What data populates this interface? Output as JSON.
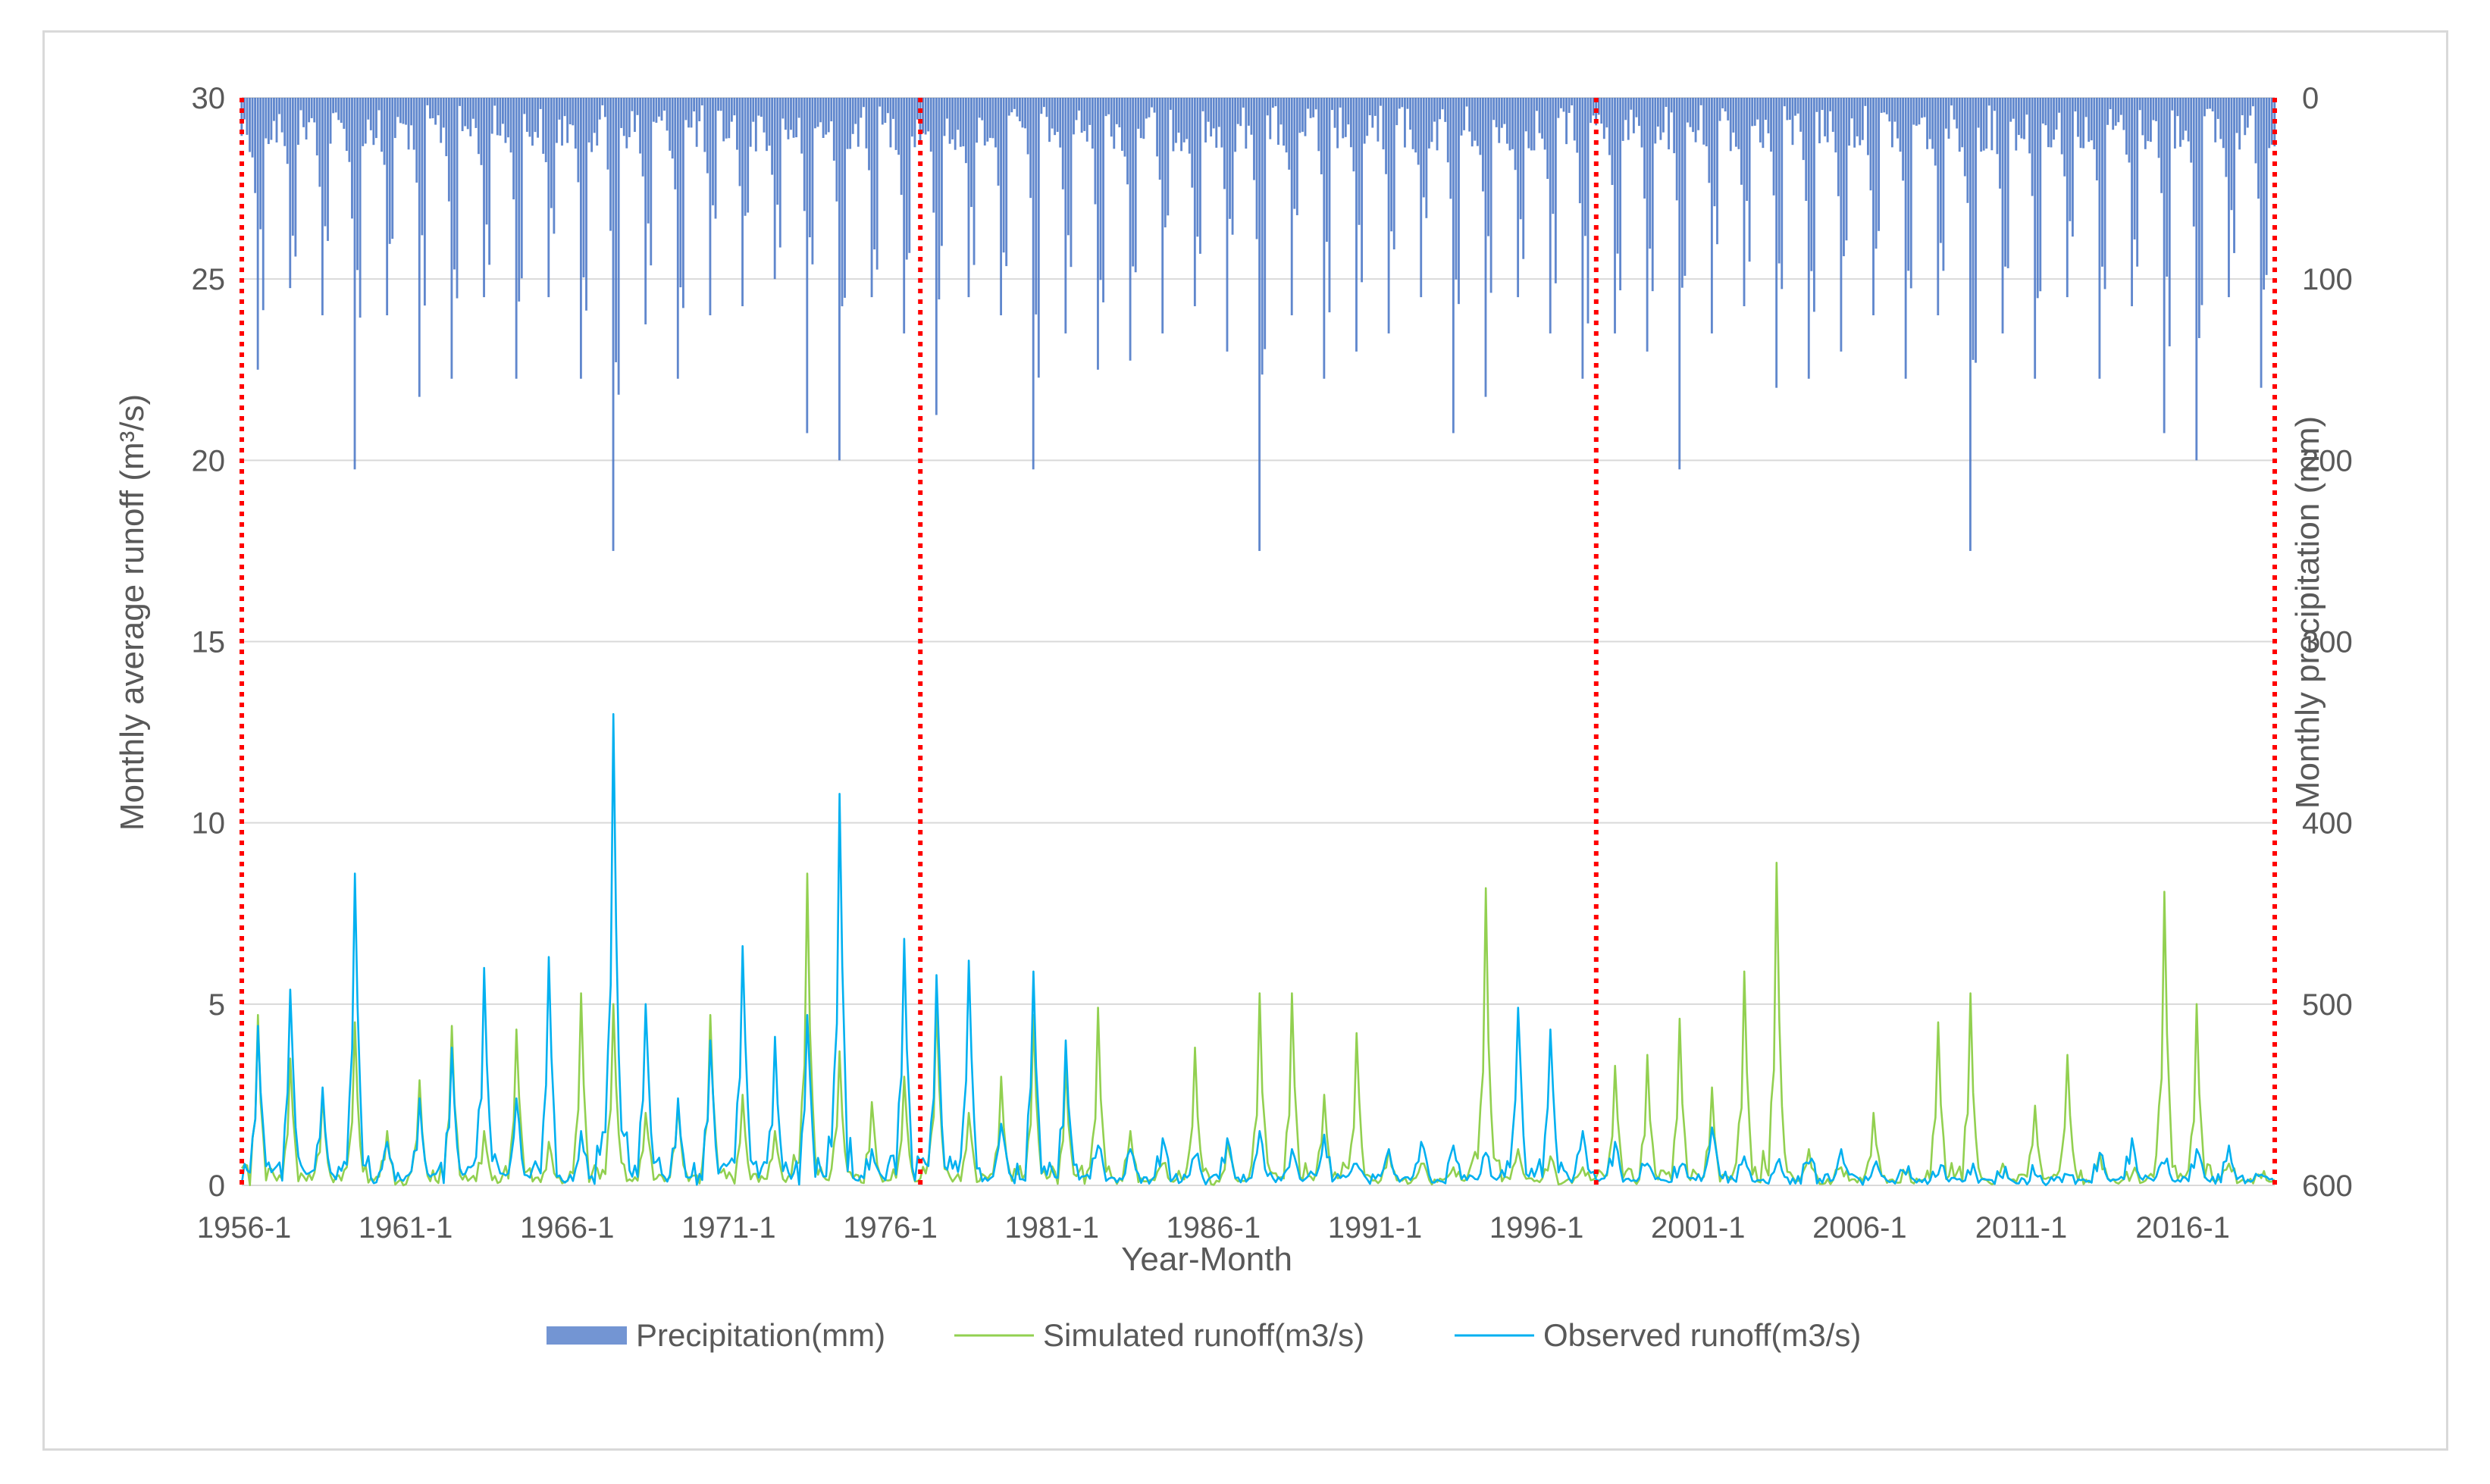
{
  "chart_data": {
    "type": "line",
    "xlabel": "Year-Month",
    "ylabel_left": "Monthly average runoff (m³/s)",
    "ylabel_right": "Monthly precipitation (mm)",
    "y_left_lim": [
      0,
      30
    ],
    "y_left_ticks": [
      "0",
      "5",
      "10",
      "15",
      "20",
      "25",
      "30"
    ],
    "y_right_lim": [
      600,
      0
    ],
    "y_right_inverted": true,
    "y_right_ticks": [
      "0",
      "100",
      "200",
      "300",
      "400",
      "500",
      "600"
    ],
    "x_range": [
      "1956-1",
      "2018-12"
    ],
    "x_ticks": [
      "1956-1",
      "1961-1",
      "1966-1",
      "1971-1",
      "1976-1",
      "1981-1",
      "1986-1",
      "1991-1",
      "1996-1",
      "2001-1",
      "2006-1",
      "2011-1",
      "2016-1"
    ],
    "grid": "horizontal",
    "legend_position": "bottom",
    "period_dividers": [
      "1956-1",
      "1977-1",
      "1997-12",
      "2018-12"
    ],
    "colors": {
      "precipitation": "#4472c4",
      "simulated": "#92d050",
      "observed": "#00b0f0",
      "divider": "#ff0000",
      "grid": "#d9d9d9",
      "text": "#595959"
    },
    "series": [
      {
        "name": "Precipitation(mm)",
        "kind": "bar",
        "axis": "right",
        "values": [
          {
            "x": "1956-7",
            "y": 150
          },
          {
            "x": "1957-7",
            "y": 105
          },
          {
            "x": "1958-7",
            "y": 120
          },
          {
            "x": "1959-7",
            "y": 205
          },
          {
            "x": "1960-7",
            "y": 120
          },
          {
            "x": "1961-7",
            "y": 165
          },
          {
            "x": "1962-7",
            "y": 155
          },
          {
            "x": "1963-7",
            "y": 110
          },
          {
            "x": "1964-7",
            "y": 155
          },
          {
            "x": "1965-7",
            "y": 110
          },
          {
            "x": "1966-7",
            "y": 155
          },
          {
            "x": "1967-7",
            "y": 250
          },
          {
            "x": "1968-7",
            "y": 125
          },
          {
            "x": "1969-7",
            "y": 155
          },
          {
            "x": "1970-7",
            "y": 120
          },
          {
            "x": "1971-7",
            "y": 115
          },
          {
            "x": "1972-7",
            "y": 100
          },
          {
            "x": "1973-7",
            "y": 185
          },
          {
            "x": "1974-7",
            "y": 200
          },
          {
            "x": "1975-7",
            "y": 110
          },
          {
            "x": "1976-7",
            "y": 130
          },
          {
            "x": "1977-7",
            "y": 175
          },
          {
            "x": "1978-7",
            "y": 110
          },
          {
            "x": "1979-7",
            "y": 120
          },
          {
            "x": "1980-7",
            "y": 205
          },
          {
            "x": "1981-7",
            "y": 130
          },
          {
            "x": "1982-7",
            "y": 150
          },
          {
            "x": "1983-7",
            "y": 145
          },
          {
            "x": "1984-7",
            "y": 130
          },
          {
            "x": "1985-7",
            "y": 115
          },
          {
            "x": "1986-7",
            "y": 140
          },
          {
            "x": "1987-7",
            "y": 250
          },
          {
            "x": "1988-7",
            "y": 120
          },
          {
            "x": "1989-7",
            "y": 155
          },
          {
            "x": "1990-7",
            "y": 140
          },
          {
            "x": "1991-7",
            "y": 130
          },
          {
            "x": "1992-7",
            "y": 110
          },
          {
            "x": "1993-7",
            "y": 185
          },
          {
            "x": "1994-7",
            "y": 165
          },
          {
            "x": "1995-7",
            "y": 110
          },
          {
            "x": "1996-7",
            "y": 130
          },
          {
            "x": "1997-7",
            "y": 155
          },
          {
            "x": "1998-7",
            "y": 130
          },
          {
            "x": "1999-7",
            "y": 140
          },
          {
            "x": "2000-7",
            "y": 205
          },
          {
            "x": "2001-7",
            "y": 130
          },
          {
            "x": "2002-7",
            "y": 115
          },
          {
            "x": "2003-7",
            "y": 160
          },
          {
            "x": "2004-7",
            "y": 155
          },
          {
            "x": "2005-7",
            "y": 140
          },
          {
            "x": "2006-7",
            "y": 120
          },
          {
            "x": "2007-7",
            "y": 155
          },
          {
            "x": "2008-7",
            "y": 120
          },
          {
            "x": "2009-7",
            "y": 250
          },
          {
            "x": "2010-7",
            "y": 130
          },
          {
            "x": "2011-7",
            "y": 155
          },
          {
            "x": "2012-7",
            "y": 110
          },
          {
            "x": "2013-7",
            "y": 155
          },
          {
            "x": "2014-7",
            "y": 115
          },
          {
            "x": "2015-7",
            "y": 185
          },
          {
            "x": "2016-7",
            "y": 200
          },
          {
            "x": "2017-7",
            "y": 110
          },
          {
            "x": "2018-7",
            "y": 160
          }
        ]
      },
      {
        "name": "Simulated runoff(m3/s)",
        "kind": "line",
        "axis": "left",
        "values": [
          {
            "x": "1956-1",
            "y": 0.8
          },
          {
            "x": "1956-7",
            "y": 4.7
          },
          {
            "x": "1957-7",
            "y": 3.5
          },
          {
            "x": "1958-7",
            "y": 2.5
          },
          {
            "x": "1959-7",
            "y": 4.5
          },
          {
            "x": "1960-7",
            "y": 1.5
          },
          {
            "x": "1961-7",
            "y": 2.9
          },
          {
            "x": "1962-7",
            "y": 4.4
          },
          {
            "x": "1963-7",
            "y": 1.5
          },
          {
            "x": "1964-7",
            "y": 4.3
          },
          {
            "x": "1965-7",
            "y": 1.2
          },
          {
            "x": "1966-7",
            "y": 5.3
          },
          {
            "x": "1967-7",
            "y": 5.0
          },
          {
            "x": "1968-7",
            "y": 2.0
          },
          {
            "x": "1969-7",
            "y": 2.2
          },
          {
            "x": "1970-7",
            "y": 4.7
          },
          {
            "x": "1971-7",
            "y": 2.5
          },
          {
            "x": "1972-7",
            "y": 1.5
          },
          {
            "x": "1973-7",
            "y": 8.6
          },
          {
            "x": "1974-7",
            "y": 3.7
          },
          {
            "x": "1975-7",
            "y": 2.3
          },
          {
            "x": "1976-7",
            "y": 3.0
          },
          {
            "x": "1977-7",
            "y": 5.1
          },
          {
            "x": "1978-7",
            "y": 2.0
          },
          {
            "x": "1979-7",
            "y": 3.0
          },
          {
            "x": "1980-7",
            "y": 4.7
          },
          {
            "x": "1981-7",
            "y": 3.4
          },
          {
            "x": "1982-7",
            "y": 4.9
          },
          {
            "x": "1983-7",
            "y": 1.5
          },
          {
            "x": "1984-7",
            "y": 0.6
          },
          {
            "x": "1985-7",
            "y": 3.8
          },
          {
            "x": "1986-7",
            "y": 1.2
          },
          {
            "x": "1987-7",
            "y": 5.3
          },
          {
            "x": "1988-7",
            "y": 5.3
          },
          {
            "x": "1989-7",
            "y": 2.5
          },
          {
            "x": "1990-7",
            "y": 4.2
          },
          {
            "x": "1991-7",
            "y": 1.0
          },
          {
            "x": "1992-7",
            "y": 0.6
          },
          {
            "x": "1993-7",
            "y": 0.5
          },
          {
            "x": "1994-7",
            "y": 8.2
          },
          {
            "x": "1995-7",
            "y": 1.0
          },
          {
            "x": "1996-7",
            "y": 0.8
          },
          {
            "x": "1997-7",
            "y": 0.5
          },
          {
            "x": "1998-7",
            "y": 3.3
          },
          {
            "x": "1999-7",
            "y": 3.6
          },
          {
            "x": "2000-7",
            "y": 4.6
          },
          {
            "x": "2001-7",
            "y": 2.7
          },
          {
            "x": "2002-7",
            "y": 5.9
          },
          {
            "x": "2003-7",
            "y": 8.9
          },
          {
            "x": "2004-7",
            "y": 1.0
          },
          {
            "x": "2005-7",
            "y": 0.5
          },
          {
            "x": "2006-7",
            "y": 2.0
          },
          {
            "x": "2007-7",
            "y": 0.3
          },
          {
            "x": "2008-7",
            "y": 4.5
          },
          {
            "x": "2009-7",
            "y": 5.3
          },
          {
            "x": "2010-7",
            "y": 0.6
          },
          {
            "x": "2011-7",
            "y": 2.2
          },
          {
            "x": "2012-7",
            "y": 3.6
          },
          {
            "x": "2013-7",
            "y": 0.9
          },
          {
            "x": "2014-7",
            "y": 0.3
          },
          {
            "x": "2015-7",
            "y": 8.1
          },
          {
            "x": "2016-7",
            "y": 5.0
          },
          {
            "x": "2017-7",
            "y": 0.6
          },
          {
            "x": "2018-7",
            "y": 0.4
          },
          {
            "x": "2018-12",
            "y": 0.2
          }
        ]
      },
      {
        "name": "Observed runoff(m3/s)",
        "kind": "line",
        "axis": "left",
        "values": [
          {
            "x": "1956-1",
            "y": 1.5
          },
          {
            "x": "1956-7",
            "y": 4.4
          },
          {
            "x": "1957-7",
            "y": 5.4
          },
          {
            "x": "1958-7",
            "y": 2.7
          },
          {
            "x": "1959-7",
            "y": 8.6
          },
          {
            "x": "1960-7",
            "y": 1.2
          },
          {
            "x": "1961-7",
            "y": 2.4
          },
          {
            "x": "1962-7",
            "y": 3.8
          },
          {
            "x": "1963-7",
            "y": 6.0
          },
          {
            "x": "1964-7",
            "y": 2.4
          },
          {
            "x": "1965-7",
            "y": 6.3
          },
          {
            "x": "1966-7",
            "y": 1.5
          },
          {
            "x": "1967-7",
            "y": 13.0
          },
          {
            "x": "1968-7",
            "y": 5.0
          },
          {
            "x": "1969-7",
            "y": 2.4
          },
          {
            "x": "1970-7",
            "y": 4.0
          },
          {
            "x": "1971-7",
            "y": 6.6
          },
          {
            "x": "1972-7",
            "y": 4.1
          },
          {
            "x": "1973-7",
            "y": 4.7
          },
          {
            "x": "1974-7",
            "y": 10.8
          },
          {
            "x": "1975-7",
            "y": 1.0
          },
          {
            "x": "1976-7",
            "y": 6.8
          },
          {
            "x": "1977-7",
            "y": 5.8
          },
          {
            "x": "1978-7",
            "y": 6.2
          },
          {
            "x": "1979-7",
            "y": 1.7
          },
          {
            "x": "1980-7",
            "y": 5.9
          },
          {
            "x": "1981-7",
            "y": 4.0
          },
          {
            "x": "1982-7",
            "y": 1.1
          },
          {
            "x": "1983-7",
            "y": 1.0
          },
          {
            "x": "1984-7",
            "y": 1.3
          },
          {
            "x": "1985-7",
            "y": 0.8
          },
          {
            "x": "1986-7",
            "y": 1.3
          },
          {
            "x": "1987-7",
            "y": 1.5
          },
          {
            "x": "1988-7",
            "y": 1.0
          },
          {
            "x": "1989-7",
            "y": 1.4
          },
          {
            "x": "1990-7",
            "y": 0.6
          },
          {
            "x": "1991-7",
            "y": 1.0
          },
          {
            "x": "1992-7",
            "y": 1.2
          },
          {
            "x": "1993-7",
            "y": 1.1
          },
          {
            "x": "1994-7",
            "y": 0.9
          },
          {
            "x": "1995-7",
            "y": 4.9
          },
          {
            "x": "1996-7",
            "y": 4.3
          },
          {
            "x": "1997-7",
            "y": 1.5
          },
          {
            "x": "1998-7",
            "y": 1.2
          },
          {
            "x": "1999-7",
            "y": 0.6
          },
          {
            "x": "2000-7",
            "y": 0.5
          },
          {
            "x": "2001-7",
            "y": 1.6
          },
          {
            "x": "2002-7",
            "y": 0.8
          },
          {
            "x": "2003-7",
            "y": 0.6
          },
          {
            "x": "2004-7",
            "y": 0.6
          },
          {
            "x": "2005-7",
            "y": 1.0
          },
          {
            "x": "2006-7",
            "y": 0.5
          },
          {
            "x": "2007-7",
            "y": 0.3
          },
          {
            "x": "2008-7",
            "y": 0.3
          },
          {
            "x": "2009-7",
            "y": 0.3
          },
          {
            "x": "2010-7",
            "y": 0.2
          },
          {
            "x": "2011-7",
            "y": 0.3
          },
          {
            "x": "2012-7",
            "y": 0.3
          },
          {
            "x": "2013-7",
            "y": 0.9
          },
          {
            "x": "2014-7",
            "y": 1.3
          },
          {
            "x": "2015-7",
            "y": 0.6
          },
          {
            "x": "2016-7",
            "y": 1.0
          },
          {
            "x": "2017-7",
            "y": 1.1
          },
          {
            "x": "2018-7",
            "y": 0.5
          },
          {
            "x": "2018-12",
            "y": 0.3
          }
        ]
      }
    ]
  }
}
